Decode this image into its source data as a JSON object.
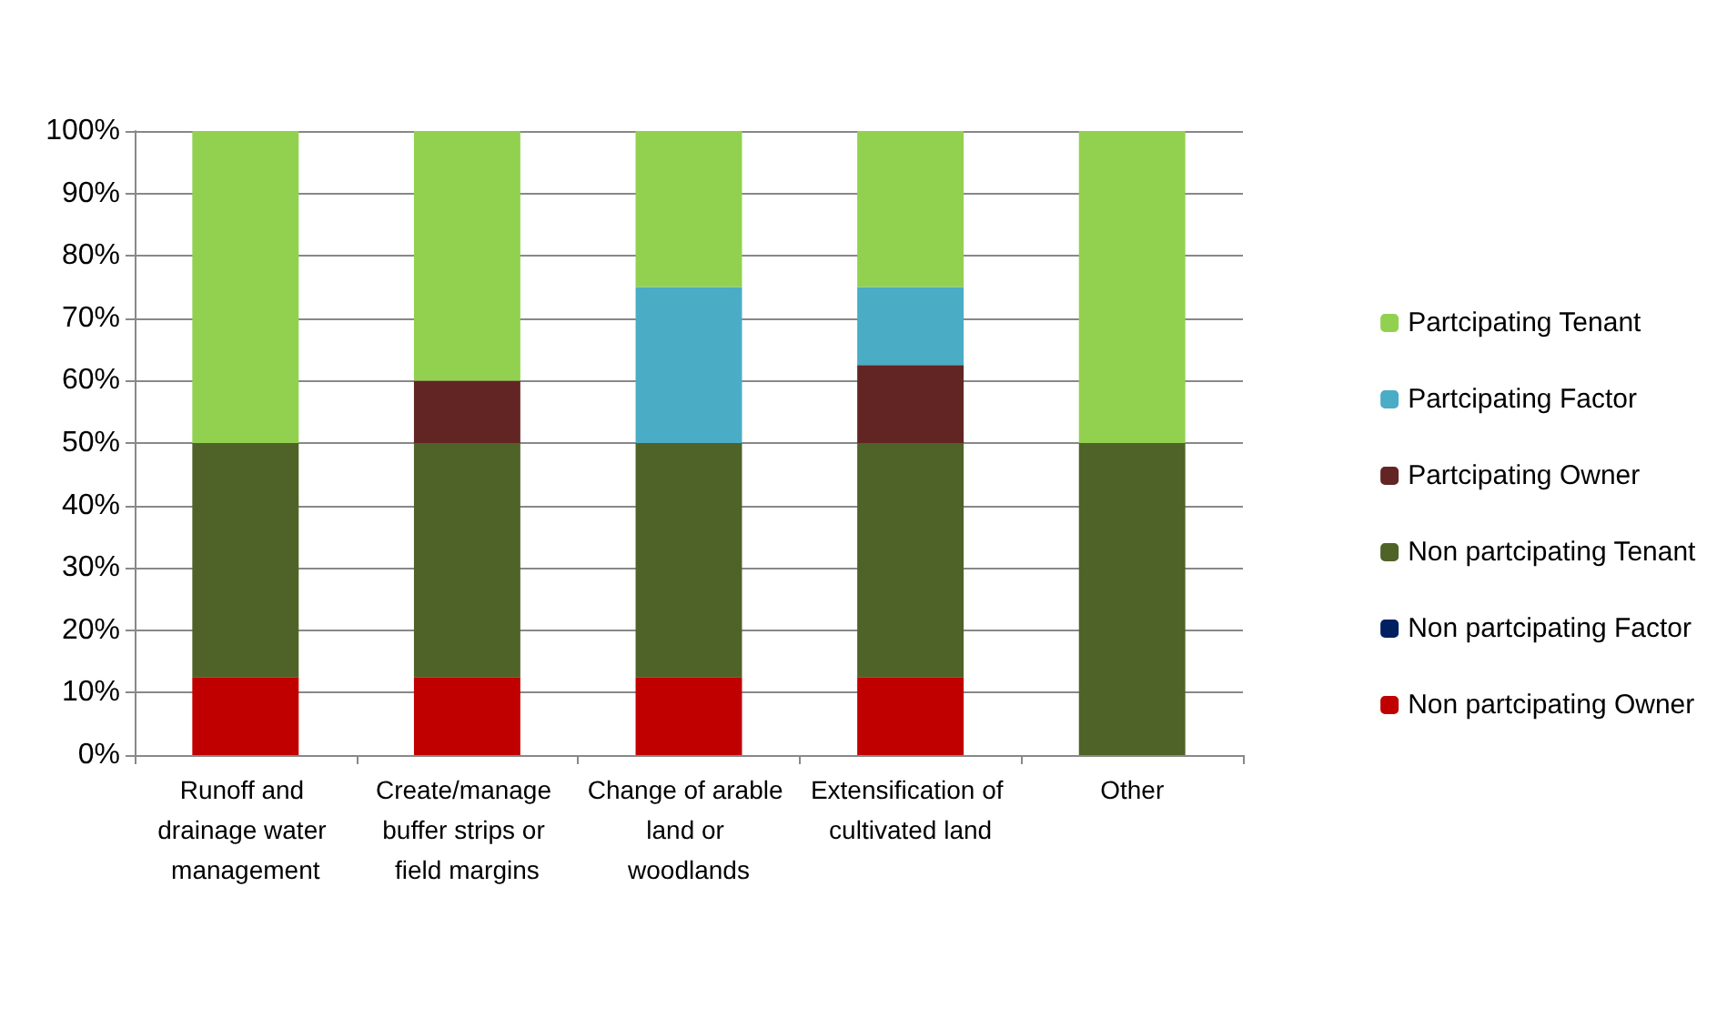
{
  "chart_data": {
    "type": "bar",
    "stacked": true,
    "categories": [
      "Runoff and drainage water management",
      "Create/manage buffer strips or field margins",
      "Change of arable land or woodlands",
      "Extensification of cultivated land",
      "Other"
    ],
    "series": [
      {
        "name": "Non partcipating Owner",
        "color": "#c00000",
        "values": [
          12.5,
          12.5,
          12.5,
          12.5,
          0
        ]
      },
      {
        "name": "Non partcipating Factor",
        "color": "#002060",
        "values": [
          0,
          0,
          0,
          0,
          0
        ]
      },
      {
        "name": "Non partcipating Tenant",
        "color": "#4f6228",
        "values": [
          37.5,
          37.5,
          37.5,
          37.5,
          50
        ]
      },
      {
        "name": "Partcipating Owner",
        "color": "#632523",
        "values": [
          0,
          10,
          0,
          12.5,
          0
        ]
      },
      {
        "name": "Partcipating Factor",
        "color": "#4bacc6",
        "values": [
          0,
          0,
          25,
          12.5,
          0
        ]
      },
      {
        "name": "Partcipating Tenant",
        "color": "#92d050",
        "values": [
          50,
          40,
          25,
          25,
          50
        ]
      }
    ],
    "ylim": [
      0,
      100
    ],
    "yticks": [
      {
        "value": 0,
        "label": "0%"
      },
      {
        "value": 10,
        "label": "10%"
      },
      {
        "value": 20,
        "label": "20%"
      },
      {
        "value": 30,
        "label": "30%"
      },
      {
        "value": 40,
        "label": "40%"
      },
      {
        "value": 50,
        "label": "50%"
      },
      {
        "value": 60,
        "label": "60%"
      },
      {
        "value": 70,
        "label": "70%"
      },
      {
        "value": 80,
        "label": "80%"
      },
      {
        "value": 90,
        "label": "90%"
      },
      {
        "value": 100,
        "label": "100%"
      }
    ],
    "grid": "y",
    "legend": "right"
  }
}
